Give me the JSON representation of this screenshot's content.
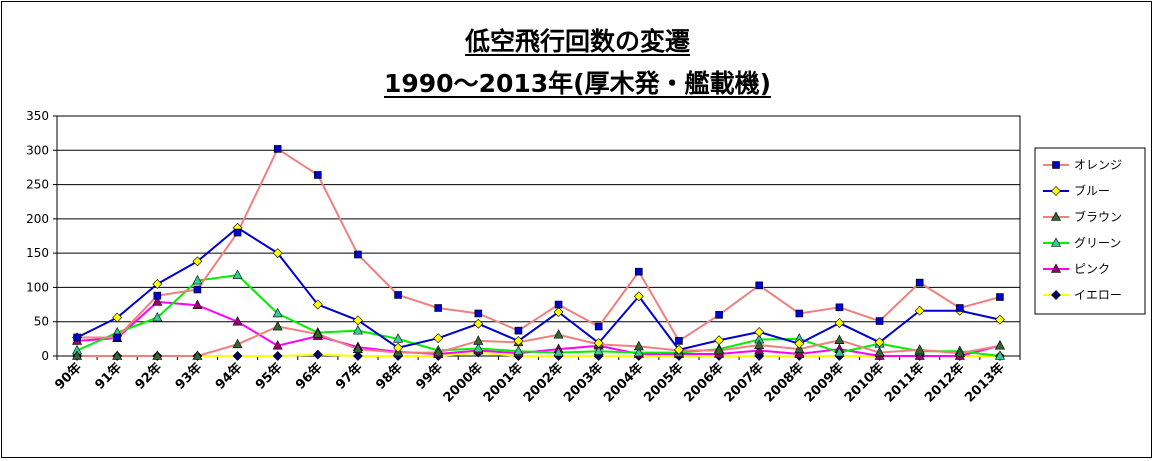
{
  "title_line1": "低空飛行回数の変遷",
  "title_line2": "1990～2013年(厚木発・艦載機)",
  "chart_data": {
    "type": "line",
    "title": "低空飛行回数の変遷 1990～2013年(厚木発・艦載機)",
    "categories": [
      "90年",
      "91年",
      "92年",
      "93年",
      "94年",
      "95年",
      "96年",
      "97年",
      "98年",
      "99年",
      "2000年",
      "2001年",
      "2002年",
      "2003年",
      "2004年",
      "2005年",
      "2006年",
      "2007年",
      "2008年",
      "2009年",
      "2010年",
      "2011年",
      "2012年",
      "2013年"
    ],
    "ylim": [
      0,
      350
    ],
    "yticks": [
      0,
      50,
      100,
      150,
      200,
      250,
      300,
      350
    ],
    "grid": true,
    "legend_position": "right",
    "series": [
      {
        "name": "オレンジ",
        "color": "#f08080",
        "marker": "square",
        "marker_fill": "#0000cc",
        "values": [
          27,
          27,
          88,
          97,
          180,
          302,
          264,
          148,
          89,
          70,
          62,
          37,
          75,
          43,
          123,
          22,
          60,
          103,
          62,
          71,
          51,
          107,
          70,
          86
        ]
      },
      {
        "name": "ブルー",
        "color": "#0000cc",
        "marker": "diamond",
        "marker_fill": "#ffff00",
        "values": [
          27,
          56,
          105,
          138,
          187,
          150,
          75,
          52,
          12,
          26,
          47,
          22,
          64,
          19,
          87,
          9,
          23,
          35,
          18,
          48,
          20,
          66,
          66,
          53
        ]
      },
      {
        "name": "ブラウン",
        "color": "#f08080",
        "marker": "triangle",
        "marker_fill": "#336633",
        "values": [
          0,
          0,
          0,
          0,
          17,
          43,
          32,
          10,
          5,
          5,
          22,
          20,
          31,
          17,
          14,
          8,
          8,
          16,
          10,
          23,
          5,
          9,
          4,
          15
        ]
      },
      {
        "name": "グリーン",
        "color": "#00ee00",
        "marker": "triangle",
        "marker_fill": "#33cc99",
        "values": [
          8,
          34,
          56,
          110,
          118,
          62,
          34,
          37,
          25,
          8,
          11,
          7,
          5,
          7,
          5,
          5,
          10,
          24,
          25,
          5,
          18,
          7,
          7,
          0
        ]
      },
      {
        "name": "ピンク",
        "color": "#ff00ff",
        "marker": "triangle",
        "marker_fill": "#990066",
        "values": [
          22,
          26,
          79,
          74,
          50,
          15,
          29,
          13,
          6,
          3,
          8,
          4,
          10,
          15,
          3,
          3,
          3,
          8,
          3,
          10,
          0,
          0,
          0,
          15
        ]
      },
      {
        "name": "イエロー",
        "color": "#ffff00",
        "marker": "diamond",
        "marker_fill": "#000066",
        "values": [
          0,
          0,
          0,
          0,
          0,
          0,
          2,
          0,
          0,
          0,
          5,
          0,
          0,
          0,
          0,
          0,
          0,
          0,
          0,
          0,
          0,
          0,
          0,
          0
        ]
      }
    ]
  }
}
